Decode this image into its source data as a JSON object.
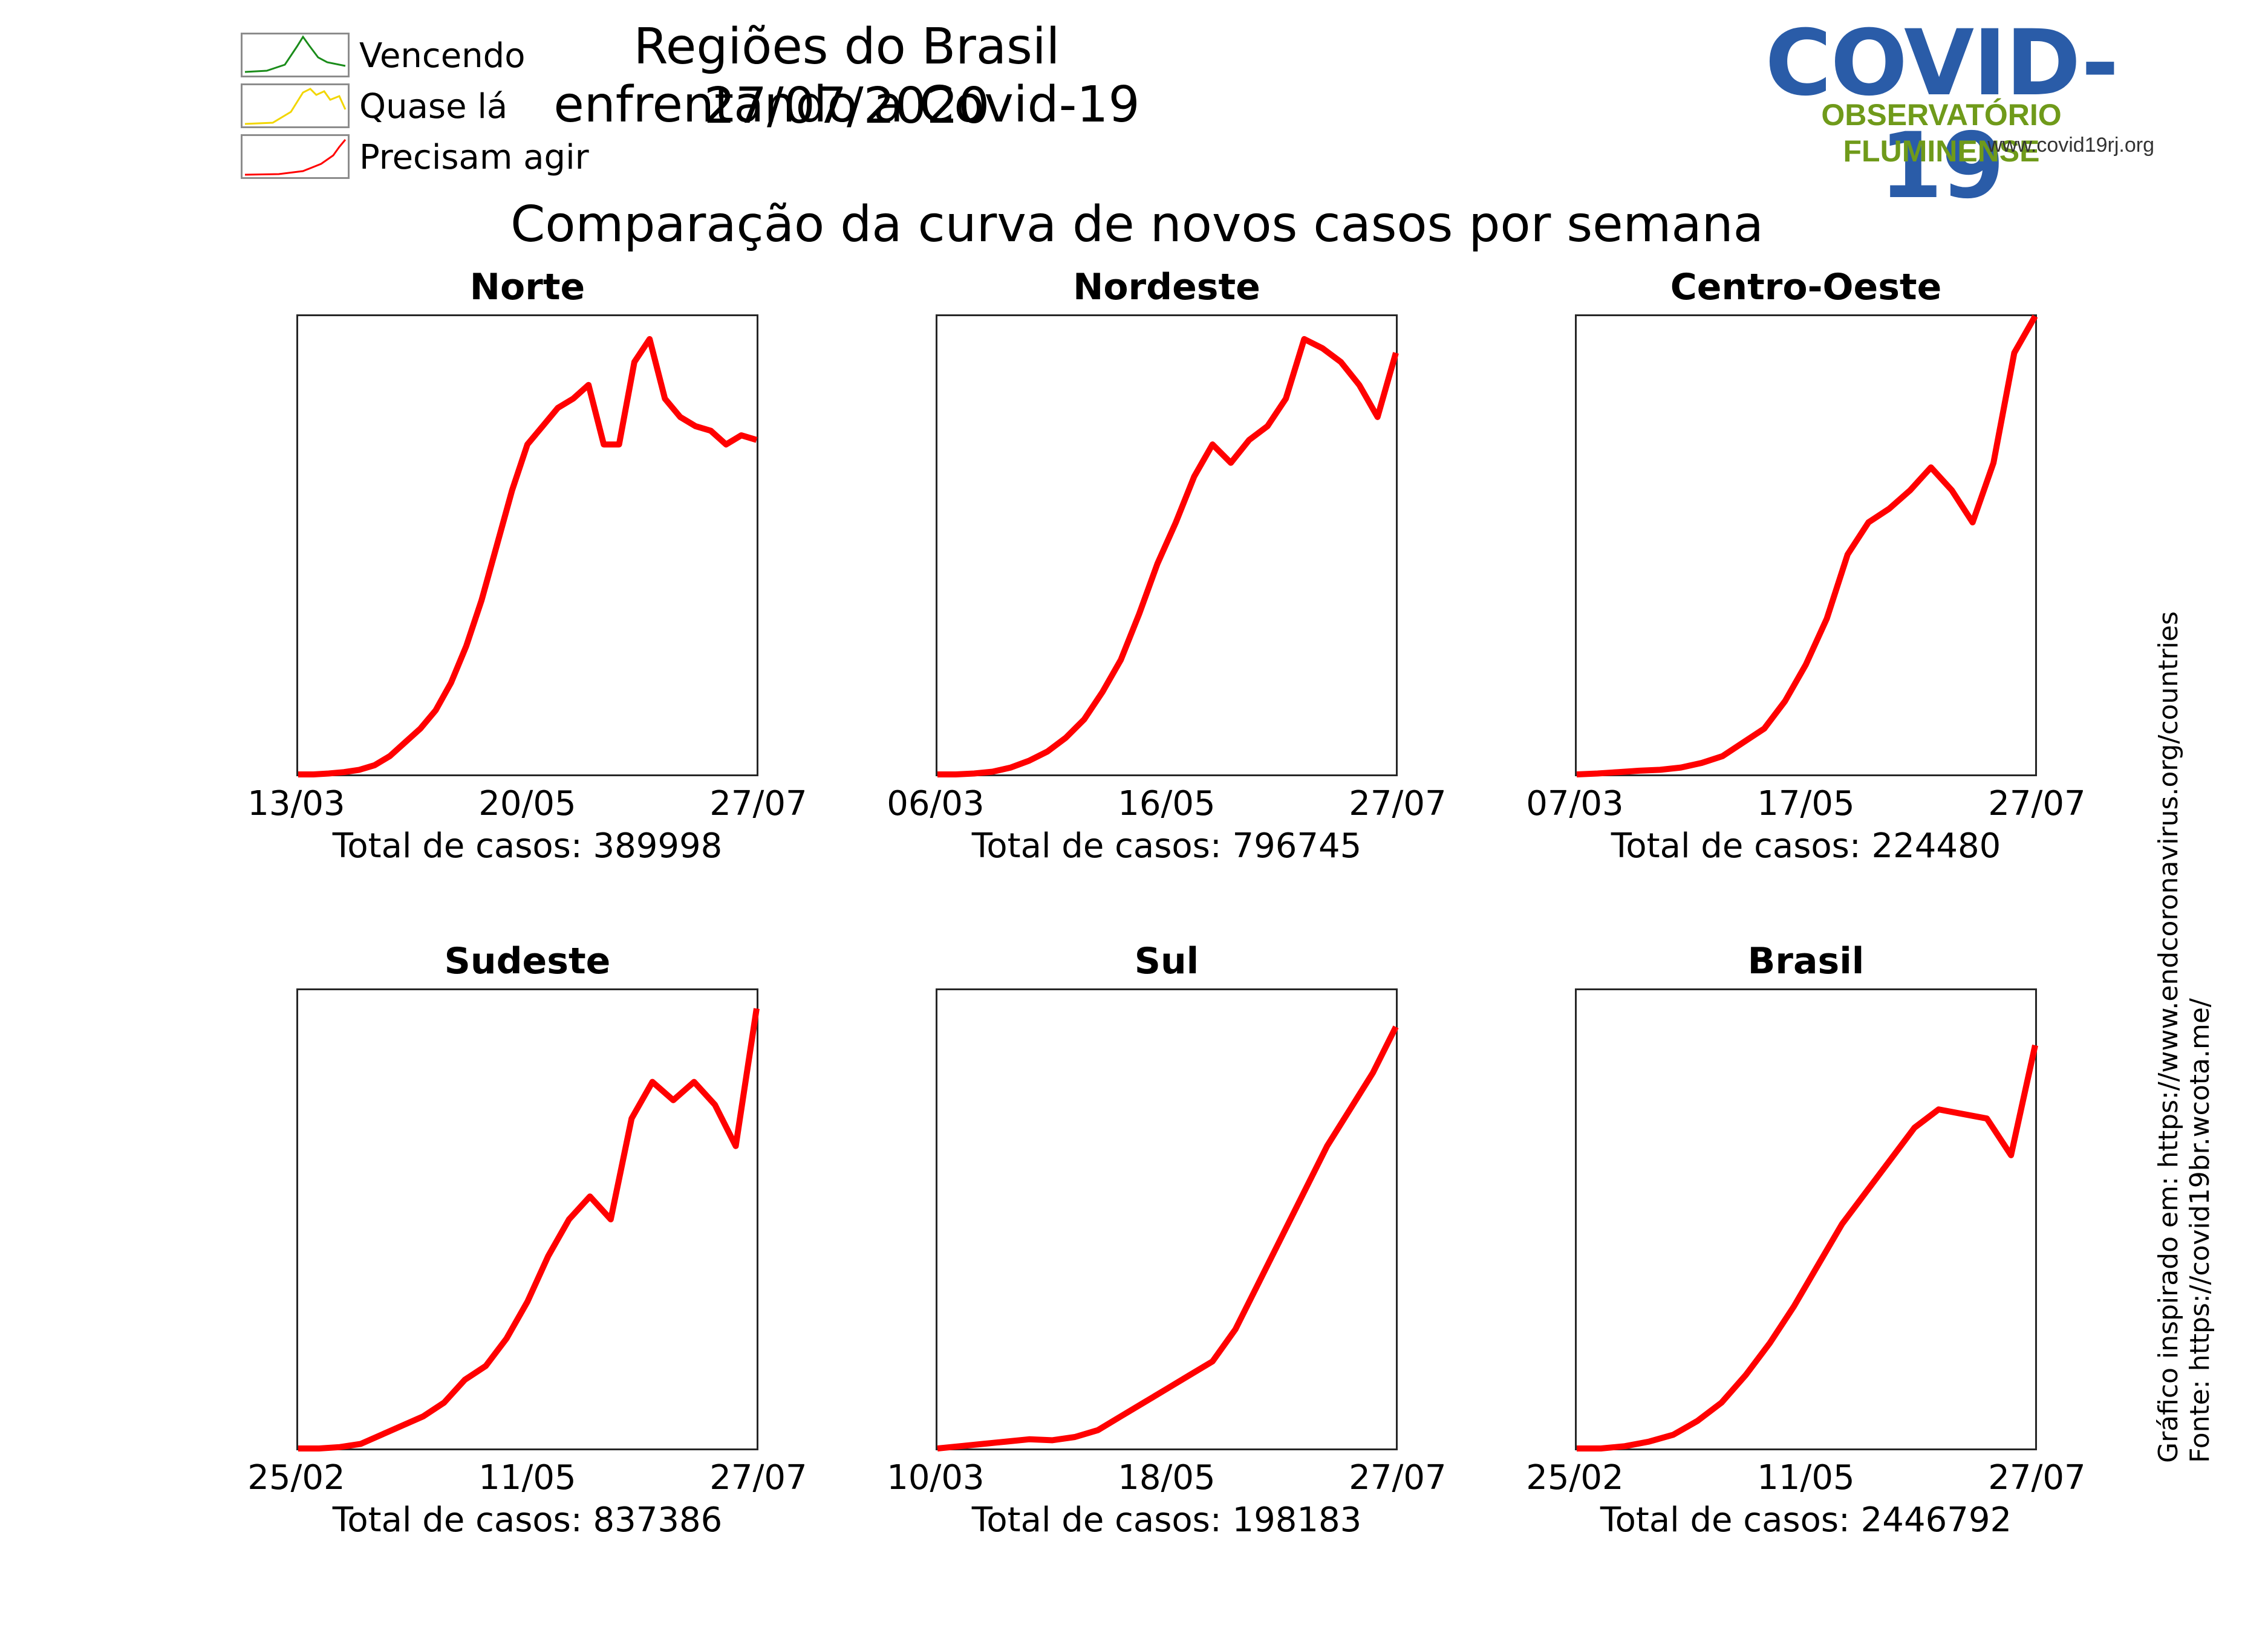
{
  "header": {
    "title": "Regiões do Brasil enfrentando a Covid-19",
    "date": "27/07/2020",
    "subtitle": "Comparação da curva de novos casos por semana"
  },
  "legend": [
    {
      "label": "Vencendo",
      "color": "#1a8c1a"
    },
    {
      "label": "Quase lá",
      "color": "#f2d600"
    },
    {
      "label": "Precisam agir",
      "color": "#ff0000"
    }
  ],
  "logo": {
    "title": "COVID-19",
    "subtitle": "OBSERVATÓRIO FLUMINENSE",
    "url": "www.covid19rj.org",
    "color_primary": "#2a5ca8",
    "color_secondary": "#6f9a1a"
  },
  "side_notes": {
    "line1": "Gráfico inspirado em: https://www.endcoronavirus.org/countries",
    "line2": "Fonte: https://covid19br.wcota.me/"
  },
  "chart_data": [
    {
      "type": "line",
      "title": "Norte",
      "color": "#ff0000",
      "xticks": [
        "13/03",
        "20/05",
        "27/07"
      ],
      "total_label": "Total de casos: 389998",
      "series_relative": [
        0,
        0,
        0.002,
        0.005,
        0.01,
        0.02,
        0.04,
        0.07,
        0.1,
        0.14,
        0.2,
        0.28,
        0.38,
        0.5,
        0.62,
        0.72,
        0.76,
        0.8,
        0.82,
        0.85,
        0.72,
        0.72,
        0.9,
        0.95,
        0.82,
        0.78,
        0.76,
        0.75,
        0.72,
        0.74,
        0.73
      ]
    },
    {
      "type": "line",
      "title": "Nordeste",
      "color": "#ff0000",
      "xticks": [
        "06/03",
        "16/05",
        "27/07"
      ],
      "total_label": "Total de casos: 796745",
      "series_relative": [
        0,
        0,
        0.002,
        0.006,
        0.015,
        0.03,
        0.05,
        0.08,
        0.12,
        0.18,
        0.25,
        0.35,
        0.46,
        0.55,
        0.65,
        0.72,
        0.68,
        0.73,
        0.76,
        0.82,
        0.95,
        0.93,
        0.9,
        0.85,
        0.78,
        0.92
      ]
    },
    {
      "type": "line",
      "title": "Centro-Oeste",
      "color": "#ff0000",
      "xticks": [
        "07/03",
        "17/05",
        "27/07"
      ],
      "total_label": "Total de casos: 224480",
      "series_relative": [
        0,
        0.002,
        0.005,
        0.008,
        0.01,
        0.015,
        0.025,
        0.04,
        0.07,
        0.1,
        0.16,
        0.24,
        0.34,
        0.48,
        0.55,
        0.58,
        0.62,
        0.67,
        0.62,
        0.55,
        0.68,
        0.92,
        1.0
      ]
    },
    {
      "type": "line",
      "title": "Sudeste",
      "color": "#ff0000",
      "xticks": [
        "25/02",
        "11/05",
        "27/07"
      ],
      "total_label": "Total de casos: 837386",
      "series_relative": [
        0,
        0,
        0.003,
        0.01,
        0.03,
        0.05,
        0.07,
        0.1,
        0.15,
        0.18,
        0.24,
        0.32,
        0.42,
        0.5,
        0.55,
        0.5,
        0.72,
        0.8,
        0.76,
        0.8,
        0.75,
        0.66,
        0.96
      ]
    },
    {
      "type": "line",
      "title": "Sul",
      "color": "#ff0000",
      "xticks": [
        "10/03",
        "18/05",
        "27/07"
      ],
      "total_label": "Total de casos: 198183",
      "series_relative": [
        0,
        0.005,
        0.01,
        0.015,
        0.02,
        0.018,
        0.025,
        0.04,
        0.07,
        0.1,
        0.13,
        0.16,
        0.19,
        0.26,
        0.36,
        0.46,
        0.56,
        0.66,
        0.74,
        0.82,
        0.92
      ]
    },
    {
      "type": "line",
      "title": "Brasil",
      "color": "#ff0000",
      "xticks": [
        "25/02",
        "11/05",
        "27/07"
      ],
      "total_label": "Total de casos: 2446792",
      "series_relative": [
        0,
        0,
        0.005,
        0.015,
        0.03,
        0.06,
        0.1,
        0.16,
        0.23,
        0.31,
        0.4,
        0.49,
        0.56,
        0.63,
        0.7,
        0.74,
        0.73,
        0.72,
        0.64,
        0.88
      ]
    }
  ]
}
